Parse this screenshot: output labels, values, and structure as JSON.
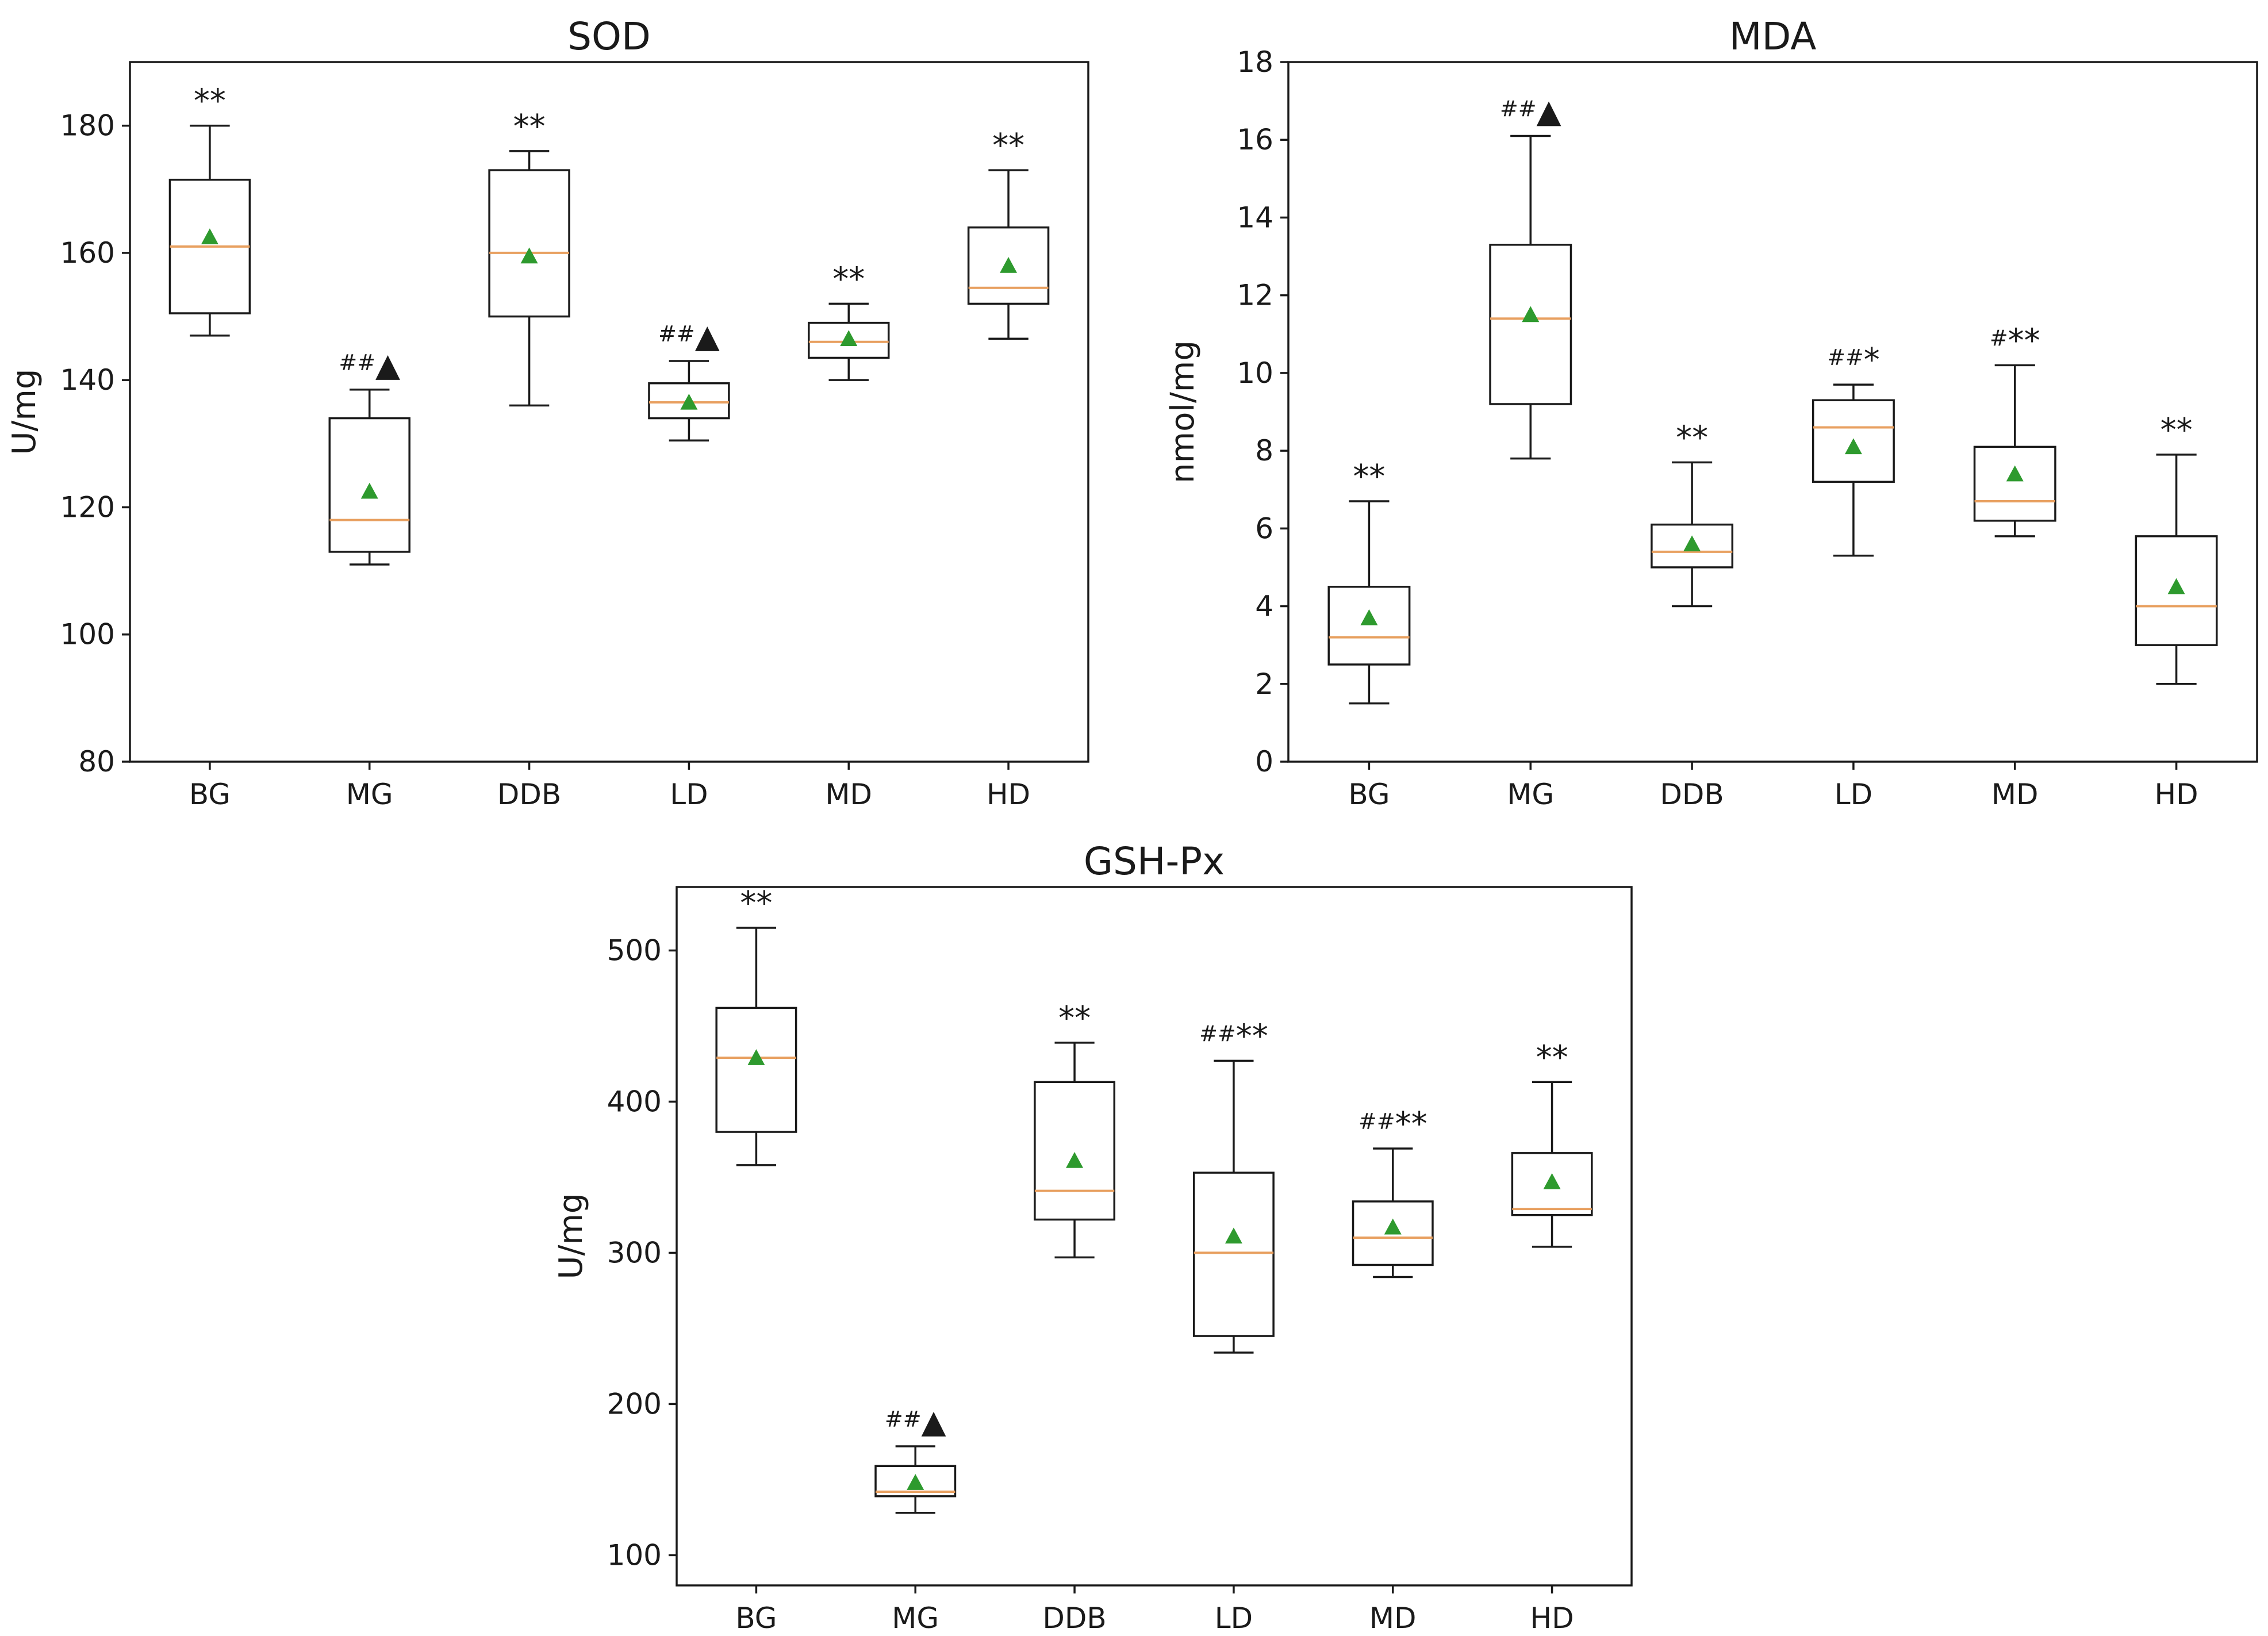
{
  "chart_data": [
    {
      "type": "box",
      "title": "SOD",
      "ylabel": "U/mg",
      "ylim": [
        80,
        190
      ],
      "yticks": [
        80,
        100,
        120,
        140,
        160,
        180
      ],
      "categories": [
        "BG",
        "MG",
        "DDB",
        "LD",
        "MD",
        "HD"
      ],
      "boxes": [
        {
          "min": 147,
          "q1": 150.5,
          "median": 161,
          "q3": 171.5,
          "max": 180,
          "mean": 162.5
        },
        {
          "min": 111,
          "q1": 113,
          "median": 118,
          "q3": 134,
          "max": 138.5,
          "mean": 122.5
        },
        {
          "min": 136,
          "q1": 150,
          "median": 160,
          "q3": 173,
          "max": 176,
          "mean": 159.5
        },
        {
          "min": 130.5,
          "q1": 134,
          "median": 136.5,
          "q3": 139.5,
          "max": 143,
          "mean": 136.5
        },
        {
          "min": 140,
          "q1": 143.5,
          "median": 146,
          "q3": 149,
          "max": 152,
          "mean": 146.5
        },
        {
          "min": 146.5,
          "q1": 152,
          "median": 154.5,
          "q3": 164,
          "max": 173,
          "mean": 158
        }
      ],
      "annotations": [
        {
          "category": "BG",
          "prefix": "",
          "text": "**"
        },
        {
          "category": "MG",
          "prefix": "##",
          "text": "▲"
        },
        {
          "category": "DDB",
          "prefix": "",
          "text": "**"
        },
        {
          "category": "LD",
          "prefix": "##",
          "text": "▲"
        },
        {
          "category": "MD",
          "prefix": "",
          "text": "**"
        },
        {
          "category": "HD",
          "prefix": "",
          "text": "**"
        }
      ]
    },
    {
      "type": "box",
      "title": "MDA",
      "ylabel": "nmol/mg",
      "ylim": [
        0,
        18
      ],
      "yticks": [
        0,
        2,
        4,
        6,
        8,
        10,
        12,
        14,
        16,
        18
      ],
      "categories": [
        "BG",
        "MG",
        "DDB",
        "LD",
        "MD",
        "HD"
      ],
      "boxes": [
        {
          "min": 1.5,
          "q1": 2.5,
          "median": 3.2,
          "q3": 4.5,
          "max": 6.7,
          "mean": 3.7
        },
        {
          "min": 7.8,
          "q1": 9.2,
          "median": 11.4,
          "q3": 13.3,
          "max": 16.1,
          "mean": 11.5
        },
        {
          "min": 4.0,
          "q1": 5.0,
          "median": 5.4,
          "q3": 6.1,
          "max": 7.7,
          "mean": 5.6
        },
        {
          "min": 5.3,
          "q1": 7.2,
          "median": 8.6,
          "q3": 9.3,
          "max": 9.7,
          "mean": 8.1
        },
        {
          "min": 5.8,
          "q1": 6.2,
          "median": 6.7,
          "q3": 8.1,
          "max": 10.2,
          "mean": 7.4
        },
        {
          "min": 2.0,
          "q1": 3.0,
          "median": 4.0,
          "q3": 5.8,
          "max": 7.9,
          "mean": 4.5
        }
      ],
      "annotations": [
        {
          "category": "BG",
          "prefix": "",
          "text": "**"
        },
        {
          "category": "MG",
          "prefix": "##",
          "text": "▲"
        },
        {
          "category": "DDB",
          "prefix": "",
          "text": "**"
        },
        {
          "category": "LD",
          "prefix": "##",
          "text": "*"
        },
        {
          "category": "MD",
          "prefix": "#",
          "text": "**"
        },
        {
          "category": "HD",
          "prefix": "",
          "text": "**"
        }
      ]
    },
    {
      "type": "box",
      "title": "GSH-Px",
      "ylabel": "U/mg",
      "ylim": [
        80,
        542
      ],
      "yticks": [
        100,
        200,
        300,
        400,
        500
      ],
      "categories": [
        "BG",
        "MG",
        "DDB",
        "LD",
        "MD",
        "HD"
      ],
      "boxes": [
        {
          "min": 358,
          "q1": 380,
          "median": 429,
          "q3": 462,
          "max": 515,
          "mean": 429
        },
        {
          "min": 128,
          "q1": 139,
          "median": 142,
          "q3": 159,
          "max": 172,
          "mean": 148
        },
        {
          "min": 297,
          "q1": 322,
          "median": 341,
          "q3": 413,
          "max": 439,
          "mean": 361
        },
        {
          "min": 234,
          "q1": 245,
          "median": 300,
          "q3": 353,
          "max": 427,
          "mean": 311
        },
        {
          "min": 284,
          "q1": 292,
          "median": 310,
          "q3": 334,
          "max": 369,
          "mean": 317
        },
        {
          "min": 304,
          "q1": 325,
          "median": 329,
          "q3": 366,
          "max": 413,
          "mean": 347
        }
      ],
      "annotations": [
        {
          "category": "BG",
          "prefix": "",
          "text": "**"
        },
        {
          "category": "MG",
          "prefix": "##",
          "text": "▲"
        },
        {
          "category": "DDB",
          "prefix": "",
          "text": "**"
        },
        {
          "category": "LD",
          "prefix": "##",
          "text": "**"
        },
        {
          "category": "MD",
          "prefix": "##",
          "text": "**"
        },
        {
          "category": "HD",
          "prefix": "",
          "text": "**"
        }
      ]
    }
  ],
  "colors": {
    "frame": "#1a1a1a",
    "median": "#e8a060",
    "mean_marker": "#2e9a2e"
  }
}
